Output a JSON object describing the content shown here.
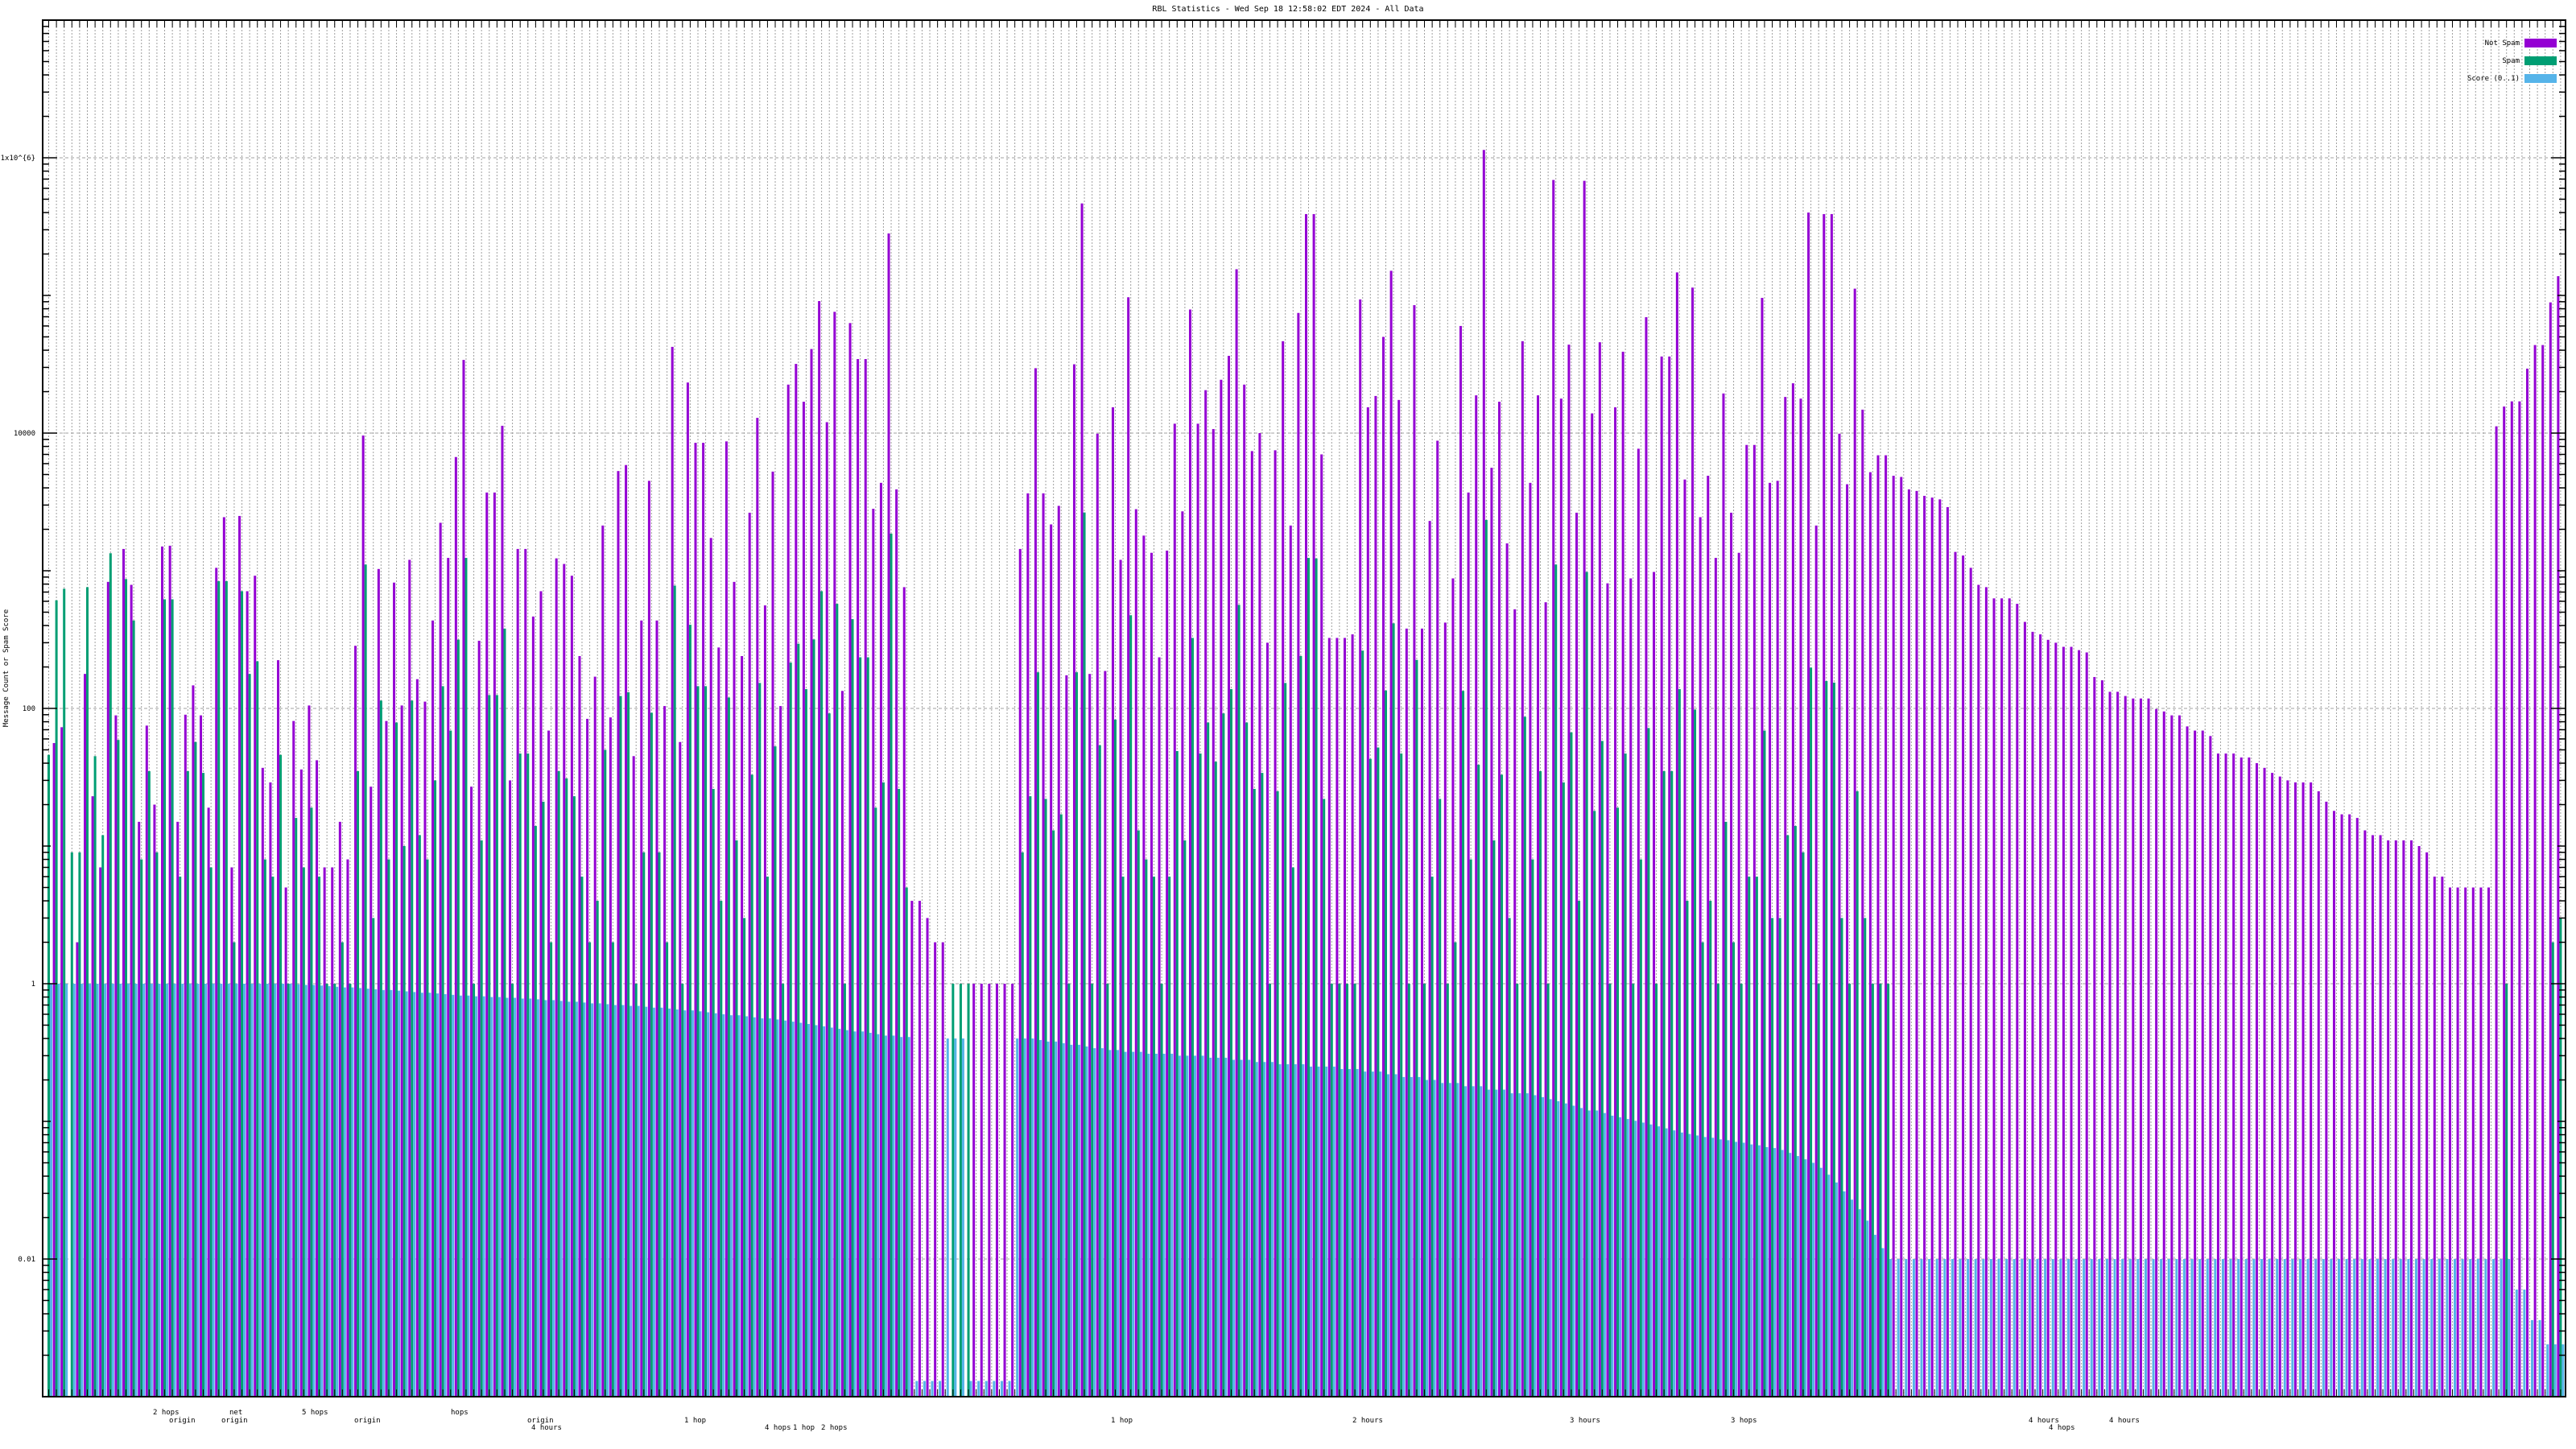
{
  "chart_data": {
    "type": "bar",
    "title": "RBL Statistics - Wed Sep 18 12:58:02 EDT 2024 - All Data",
    "xlabel": "",
    "ylabel": "Message Count or Spam Score",
    "yscale": "log",
    "ylim": [
      0.001,
      10000000
    ],
    "y_tick_labels": [
      "1x10^{6}",
      "10000",
      "100",
      "1",
      "0.01"
    ],
    "y_tick_values": [
      1000000,
      10000,
      100,
      1,
      0.01
    ],
    "grid": true,
    "legend_position": "top-right",
    "x_label_fragments": [
      "2 hops",
      "origin",
      "net",
      "origin",
      "5 hops",
      "origin",
      "hops",
      "origin",
      "4 hours",
      "1 hop",
      "4 hops",
      "1 hop",
      "2 hops",
      "1 hop",
      "2 hours",
      "3 hours",
      "4 hours",
      "3 hops",
      "4 hours",
      "4 hops"
    ],
    "group_count": 326,
    "series": [
      {
        "name": "Not Spam",
        "color": "#9400d3",
        "values": [
          0,
          56,
          73,
          0,
          2,
          178,
          23,
          7,
          830,
          89,
          1440,
          790,
          15,
          75,
          20,
          1500,
          1520,
          15,
          90,
          147,
          89,
          19,
          1050,
          2450,
          7,
          2500,
          710,
          920,
          37,
          29,
          224,
          5,
          81,
          36,
          105,
          42,
          7,
          7,
          15,
          8,
          285,
          9600,
          27,
          1030,
          81,
          820,
          105,
          1200,
          163,
          112,
          435,
          2230,
          1240,
          6700,
          34000,
          27,
          310,
          3700,
          3700,
          11300,
          30,
          1440,
          1440,
          465,
          710,
          69,
          1230,
          1120,
          920,
          240,
          84,
          170,
          2130,
          86,
          5300,
          5860,
          45,
          435,
          4500,
          435,
          104,
          42300,
          57,
          23300,
          8500,
          8500,
          1730,
          277,
          8700,
          830,
          240,
          2640,
          12900,
          560,
          5250,
          104,
          22500,
          31800,
          16900,
          40800,
          91000,
          12000,
          76000,
          134,
          63000,
          34500,
          34500,
          2820,
          4350,
          282000,
          3900,
          760,
          4,
          4,
          3,
          2,
          2,
          0,
          0,
          0,
          1,
          1,
          1,
          1,
          1,
          1,
          1440,
          3650,
          29600,
          3650,
          2170,
          2960,
          174,
          31600,
          466000,
          178,
          9900,
          187,
          15400,
          1200,
          97000,
          2800,
          1800,
          1350,
          235,
          1400,
          11700,
          2700,
          79000,
          11700,
          20500,
          10700,
          24400,
          36400,
          155000,
          22500,
          7400,
          10000,
          300,
          7500,
          46500,
          2130,
          74600,
          390000,
          390000,
          7000,
          325,
          325,
          325,
          345,
          93500,
          15400,
          18600,
          50000,
          151000,
          17400,
          380,
          85000,
          380,
          2300,
          8800,
          420,
          880,
          60000,
          3700,
          18800,
          1140000,
          5600,
          16900,
          1580,
          525,
          46500,
          4350,
          18800,
          590,
          690000,
          17800,
          43900,
          2640,
          680000,
          13900,
          45700,
          810,
          15400,
          39000,
          880,
          7700,
          69500,
          980,
          36000,
          36000,
          147000,
          4600,
          114000,
          2450,
          4900,
          1240,
          19400,
          2640,
          1350,
          8200,
          8200,
          96000,
          4350,
          4500,
          18300,
          23000,
          17800,
          400000,
          2130,
          390000,
          390000,
          9900,
          4250,
          112000,
          14800,
          5200,
          6900,
          6900,
          4900,
          4800,
          3900,
          3800,
          3500,
          3400,
          3300,
          2900,
          1370,
          1290,
          1050,
          790,
          760,
          630,
          630,
          630,
          575,
          425,
          360,
          345,
          315,
          300,
          280,
          280,
          265,
          255,
          169,
          160,
          132,
          132,
          123,
          118,
          118,
          118,
          99,
          95,
          89,
          89,
          74,
          69,
          69,
          63,
          47,
          47,
          47,
          44,
          44,
          40,
          37,
          34,
          32,
          30,
          29,
          29,
          29,
          25,
          21,
          18,
          17,
          17,
          16,
          13,
          12,
          12,
          11,
          11,
          11,
          11,
          10,
          9,
          6,
          6,
          5,
          5,
          5,
          5,
          5,
          5,
          11200,
          15600,
          17000,
          17000,
          29400,
          43600,
          43600,
          89000,
          138000
        ]
      },
      {
        "name": "Spam",
        "color": "#009e73",
        "values": [
          46,
          610,
          740,
          9,
          9,
          760,
          45,
          12,
          1340,
          59,
          870,
          435,
          8,
          35,
          9,
          620,
          620,
          6,
          35,
          57,
          34,
          7,
          840,
          840,
          2,
          710,
          178,
          220,
          8,
          6,
          46,
          1,
          16,
          7,
          19,
          6,
          1,
          1,
          2,
          1,
          35,
          1110,
          3,
          114,
          8,
          79,
          10,
          114,
          12,
          8,
          30,
          145,
          69,
          316,
          1240,
          1,
          11,
          125,
          125,
          380,
          1,
          47,
          47,
          14,
          21,
          2,
          35,
          31,
          23,
          6,
          2,
          4,
          50,
          2,
          123,
          131,
          1,
          9,
          93,
          9,
          2,
          780,
          1,
          405,
          145,
          145,
          26,
          4,
          120,
          11,
          3,
          33,
          153,
          6,
          53,
          1,
          215,
          295,
          138,
          317,
          710,
          92,
          575,
          1,
          445,
          235,
          235,
          19,
          29,
          1860,
          26,
          5,
          0,
          0,
          0,
          0,
          0,
          1,
          1,
          1,
          0,
          0,
          0,
          0,
          0,
          0,
          9,
          23,
          183,
          22,
          13,
          17,
          1,
          183,
          2650,
          1,
          54,
          1,
          83,
          6,
          475,
          13,
          8,
          6,
          1,
          6,
          49,
          11,
          325,
          47,
          79,
          41,
          92,
          138,
          565,
          79,
          26,
          34,
          1,
          25,
          153,
          7,
          240,
          1240,
          1230,
          22,
          1,
          1,
          1,
          1,
          263,
          43,
          52,
          135,
          415,
          47,
          1,
          225,
          1,
          6,
          22,
          1,
          2,
          134,
          8,
          39,
          2340,
          11,
          33,
          3,
          1,
          87,
          8,
          35,
          1,
          1110,
          29,
          67,
          4,
          980,
          18,
          58,
          1,
          19,
          47,
          1,
          8,
          72,
          1,
          35,
          35,
          138,
          4,
          98,
          2,
          4,
          1,
          15,
          2,
          1,
          6,
          6,
          69,
          3,
          3,
          12,
          14,
          9,
          198,
          1,
          158,
          154,
          3,
          1,
          25,
          3,
          1,
          1,
          1,
          0,
          0,
          0,
          0,
          0,
          0,
          0,
          0,
          0,
          0,
          0,
          0,
          0,
          0,
          0,
          0,
          0,
          0,
          0,
          0,
          0,
          0,
          0,
          0,
          0,
          0,
          0,
          0,
          0,
          0,
          0,
          0,
          0,
          0,
          0,
          0,
          0,
          0,
          0,
          0,
          0,
          0,
          0,
          0,
          0,
          0,
          0,
          0,
          0,
          0,
          0,
          0,
          0,
          0,
          0,
          0,
          0,
          0,
          0,
          0,
          0,
          0,
          0,
          0,
          0,
          0,
          0,
          0,
          0,
          0,
          0,
          0,
          0,
          0,
          0,
          0,
          0,
          0,
          0,
          1,
          0,
          0,
          0,
          0,
          0,
          2,
          3
        ]
      },
      {
        "name": "Score (0..1)",
        "color": "#56b4e9",
        "values": [
          1,
          1,
          1,
          1,
          1,
          1,
          1,
          1,
          1,
          1,
          1,
          1,
          1,
          1,
          1,
          1,
          1,
          1,
          1,
          1,
          1,
          1,
          1,
          1,
          1,
          1,
          1,
          1,
          1,
          1,
          1,
          1.0,
          0.99,
          0.98,
          0.98,
          0.97,
          0.96,
          0.95,
          0.94,
          0.94,
          0.93,
          0.92,
          0.91,
          0.9,
          0.9,
          0.89,
          0.88,
          0.87,
          0.86,
          0.86,
          0.85,
          0.84,
          0.83,
          0.82,
          0.82,
          0.81,
          0.81,
          0.8,
          0.8,
          0.79,
          0.79,
          0.78,
          0.78,
          0.77,
          0.76,
          0.76,
          0.75,
          0.74,
          0.74,
          0.73,
          0.72,
          0.72,
          0.71,
          0.7,
          0.7,
          0.69,
          0.69,
          0.68,
          0.67,
          0.67,
          0.66,
          0.65,
          0.64,
          0.64,
          0.63,
          0.62,
          0.61,
          0.6,
          0.59,
          0.59,
          0.58,
          0.57,
          0.56,
          0.56,
          0.55,
          0.54,
          0.53,
          0.52,
          0.51,
          0.5,
          0.49,
          0.48,
          0.47,
          0.46,
          0.45,
          0.45,
          0.44,
          0.43,
          0.42,
          0.42,
          0.41,
          0.41,
          0.0013,
          0.0013,
          0.0013,
          0.0013,
          0.4,
          0.4,
          0.4,
          0.0013,
          0.0013,
          0.0013,
          0.0013,
          0.0013,
          0.0013,
          0.4,
          0.4,
          0.4,
          0.39,
          0.38,
          0.38,
          0.37,
          0.36,
          0.36,
          0.35,
          0.34,
          0.34,
          0.33,
          0.33,
          0.32,
          0.32,
          0.32,
          0.31,
          0.31,
          0.31,
          0.31,
          0.3,
          0.3,
          0.3,
          0.3,
          0.29,
          0.29,
          0.29,
          0.28,
          0.28,
          0.28,
          0.27,
          0.27,
          0.27,
          0.26,
          0.26,
          0.26,
          0.26,
          0.25,
          0.25,
          0.25,
          0.25,
          0.24,
          0.24,
          0.24,
          0.23,
          0.23,
          0.23,
          0.22,
          0.22,
          0.21,
          0.21,
          0.21,
          0.2,
          0.2,
          0.19,
          0.19,
          0.19,
          0.18,
          0.18,
          0.18,
          0.17,
          0.17,
          0.17,
          0.16,
          0.16,
          0.16,
          0.155,
          0.15,
          0.145,
          0.14,
          0.135,
          0.13,
          0.125,
          0.12,
          0.12,
          0.115,
          0.11,
          0.107,
          0.104,
          0.101,
          0.098,
          0.095,
          0.092,
          0.089,
          0.086,
          0.083,
          0.081,
          0.079,
          0.077,
          0.076,
          0.074,
          0.073,
          0.071,
          0.07,
          0.068,
          0.067,
          0.065,
          0.064,
          0.062,
          0.059,
          0.056,
          0.053,
          0.05,
          0.046,
          0.041,
          0.036,
          0.031,
          0.027,
          0.023,
          0.019,
          0.015,
          0.012,
          0.01,
          0.01,
          0.01,
          0.01,
          0.01,
          0.01,
          0.01,
          0.01,
          0.01,
          0.01,
          0.01,
          0.01,
          0.01,
          0.01,
          0.01,
          0.01,
          0.01,
          0.01,
          0.01,
          0.01,
          0.01,
          0.01,
          0.01,
          0.01,
          0.01,
          0.01,
          0.01,
          0.01,
          0.01,
          0.01,
          0.01,
          0.01,
          0.01,
          0.01,
          0.01,
          0.01,
          0.01,
          0.01,
          0.01,
          0.01,
          0.01,
          0.01,
          0.01,
          0.01,
          0.01,
          0.01,
          0.01,
          0.01,
          0.01,
          0.01,
          0.01,
          0.01,
          0.01,
          0.01,
          0.01,
          0.01,
          0.01,
          0.01,
          0.01,
          0.01,
          0.01,
          0.01,
          0.01,
          0.01,
          0.01,
          0.01,
          0.01,
          0.01,
          0.01,
          0.01,
          0.01,
          0.01,
          0.01,
          0.01,
          0.01,
          0.01,
          0.01,
          0.01,
          0.01,
          0.01,
          0.01,
          0.006,
          0.006,
          0.0036,
          0.0036,
          0.0024,
          0.0024,
          0.0024
        ]
      }
    ]
  }
}
